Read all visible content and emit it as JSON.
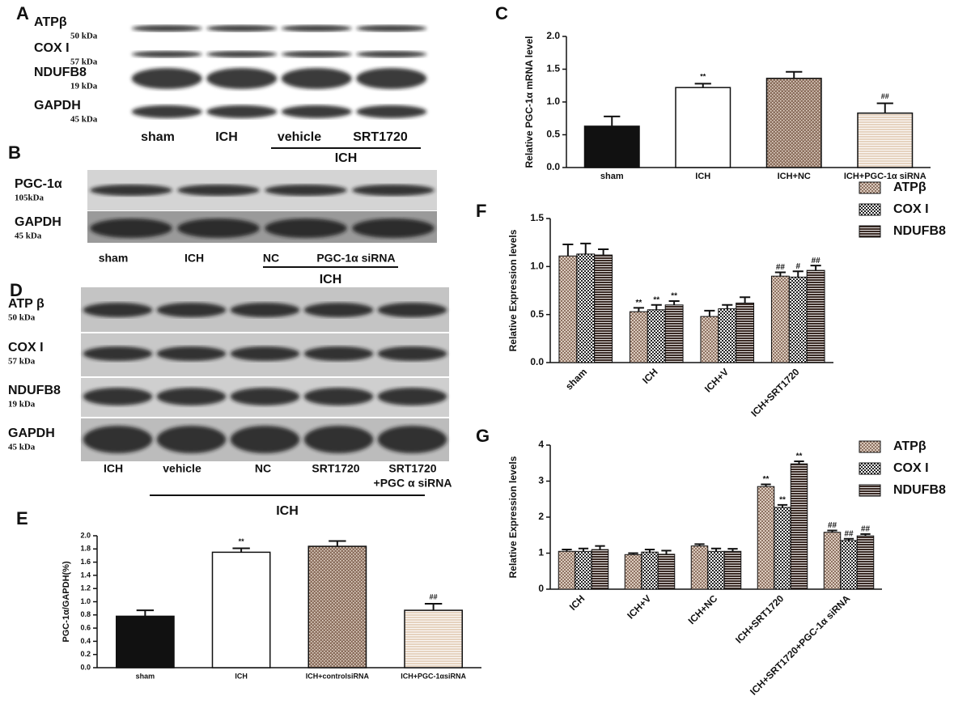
{
  "blots": [
    {
      "panel": "A",
      "rows": [
        {
          "name": "ATPβ",
          "size": "50 kDa"
        },
        {
          "name": "COX I",
          "size": "57 kDa"
        },
        {
          "name": "NDUFB8",
          "size": "19 kDa"
        },
        {
          "name": "GAPDH",
          "size": "45 kDa"
        }
      ],
      "lanes": [
        [
          "sham"
        ],
        [
          "ICH"
        ],
        [
          "vehicle"
        ],
        [
          "SRT1720"
        ]
      ],
      "group": "ICH"
    },
    {
      "panel": "B",
      "rows": [
        {
          "name": "PGC-1α",
          "size": "105kDa"
        },
        {
          "name": "GAPDH",
          "size": "45 kDa"
        }
      ],
      "lanes": [
        [
          "sham"
        ],
        [
          "ICH"
        ],
        [
          "NC"
        ],
        [
          "PGC-1α siRNA"
        ]
      ],
      "group": "ICH"
    },
    {
      "panel": "D",
      "rows": [
        {
          "name": "ATP β",
          "size": "50 kDa"
        },
        {
          "name": "COX I",
          "size": "57 kDa"
        },
        {
          "name": "NDUFB8",
          "size": "19 kDa"
        },
        {
          "name": "GAPDH",
          "size": "45 kDa"
        }
      ],
      "lanes": [
        [
          "ICH"
        ],
        [
          "vehicle"
        ],
        [
          "NC"
        ],
        [
          "SRT1720"
        ],
        [
          "SRT1720",
          "+PGC    α siRNA"
        ]
      ],
      "group": "ICH"
    }
  ],
  "chart_data": [
    {
      "type": "bar",
      "panel": "C",
      "y_label": "Relative PGC-1α mRNA level",
      "categories": [
        "sham",
        "ICH",
        "ICH+NC",
        "ICH+PGC-1α siRNA"
      ],
      "values": [
        0.63,
        1.22,
        1.36,
        0.83
      ],
      "errors": [
        0.15,
        0.06,
        0.1,
        0.15
      ],
      "stars": [
        null,
        "**",
        null,
        "##"
      ],
      "colors": [
        "#111111",
        "#ffffff",
        "#8c6f5e",
        "#e6d3c0"
      ],
      "patterns": [
        null,
        null,
        "dots",
        "hstripe"
      ],
      "ylim": [
        0,
        2
      ],
      "yticks": [
        {
          "value": 0,
          "label": "0.0"
        },
        {
          "value": 0.5,
          "label": "0.5"
        },
        {
          "value": 1,
          "label": "1.0"
        },
        {
          "value": 1.5,
          "label": "1.5"
        },
        {
          "value": 2,
          "label": "2.0"
        }
      ]
    },
    {
      "type": "bar",
      "panel": "E",
      "y_label": "PGC-1α/GAPDH(%)",
      "categories": [
        "sham",
        "ICH",
        "ICH+controlsiRNA",
        "ICH+PGC-1αsiRNA"
      ],
      "values": [
        0.78,
        1.75,
        1.84,
        0.87
      ],
      "errors": [
        0.09,
        0.06,
        0.08,
        0.1
      ],
      "stars": [
        null,
        "**",
        null,
        "##"
      ],
      "colors": [
        "#111111",
        "#ffffff",
        "#8c6f5e",
        "#e6d3c0"
      ],
      "patterns": [
        null,
        null,
        "dots",
        "hstripe"
      ],
      "ylim": [
        0,
        2
      ],
      "yticks": [
        {
          "value": 0,
          "label": "0.0"
        },
        {
          "value": 0.2,
          "label": "0.2"
        },
        {
          "value": 0.4,
          "label": "0.4"
        },
        {
          "value": 0.6,
          "label": "0.6"
        },
        {
          "value": 0.8,
          "label": "0.8"
        },
        {
          "value": 1,
          "label": "1.0"
        },
        {
          "value": 1.2,
          "label": "1.2"
        },
        {
          "value": 1.4,
          "label": "1.4"
        },
        {
          "value": 1.6,
          "label": "1.6"
        },
        {
          "value": 1.8,
          "label": "1.8"
        },
        {
          "value": 2,
          "label": "2.0"
        }
      ]
    },
    {
      "type": "grouped_bar",
      "panel": "F",
      "y_label": "Relative Expression levels",
      "categories": [
        "sham",
        "ICH",
        "ICH+V",
        "ICH+SRT1720"
      ],
      "series": [
        {
          "name": "ATPβ",
          "color": "#7a5a4a",
          "pattern": "diag",
          "values": [
            1.11,
            0.53,
            0.48,
            0.9
          ],
          "errors": [
            0.12,
            0.04,
            0.06,
            0.04
          ],
          "stars": [
            null,
            "**",
            null,
            "##"
          ]
        },
        {
          "name": "COX I",
          "color": "#222222",
          "pattern": "check",
          "values": [
            1.13,
            0.55,
            0.56,
            0.89
          ],
          "errors": [
            0.11,
            0.05,
            0.04,
            0.06
          ],
          "stars": [
            null,
            "**",
            null,
            "#"
          ]
        },
        {
          "name": "NDUFB8",
          "color": "#3a2a24",
          "pattern": "hstripe",
          "values": [
            1.12,
            0.6,
            0.62,
            0.96
          ],
          "errors": [
            0.06,
            0.04,
            0.06,
            0.05
          ],
          "stars": [
            null,
            "**",
            null,
            "##"
          ]
        }
      ],
      "ylim": [
        0,
        1.5
      ],
      "yticks": [
        {
          "value": 0,
          "label": "0.0"
        },
        {
          "value": 0.5,
          "label": "0.5"
        },
        {
          "value": 1,
          "label": "1.0"
        },
        {
          "value": 1.5,
          "label": "1.5"
        }
      ]
    },
    {
      "type": "grouped_bar",
      "panel": "G",
      "y_label": "Relative Expression levels",
      "categories": [
        "ICH",
        "ICH+V",
        "ICH+NC",
        "ICH+SRT1720",
        "ICH+SRT1720+PGC-1α siRNA"
      ],
      "series": [
        {
          "name": "ATPβ",
          "color": "#7a5a4a",
          "pattern": "diag",
          "values": [
            1.05,
            0.96,
            1.2,
            2.85,
            1.58
          ],
          "errors": [
            0.05,
            0.04,
            0.05,
            0.06,
            0.05
          ],
          "stars": [
            null,
            null,
            null,
            "**",
            "##"
          ]
        },
        {
          "name": "COX I",
          "color": "#222222",
          "pattern": "check",
          "values": [
            1.05,
            1.03,
            1.05,
            2.27,
            1.35
          ],
          "errors": [
            0.08,
            0.07,
            0.08,
            0.07,
            0.05
          ],
          "stars": [
            null,
            null,
            null,
            "**",
            "##"
          ]
        },
        {
          "name": "NDUFB8",
          "color": "#3a2a24",
          "pattern": "hstripe",
          "values": [
            1.1,
            0.97,
            1.05,
            3.48,
            1.48
          ],
          "errors": [
            0.1,
            0.1,
            0.07,
            0.07,
            0.05
          ],
          "stars": [
            null,
            null,
            null,
            "**",
            "##"
          ]
        }
      ],
      "ylim": [
        0,
        4
      ],
      "yticks": [
        0,
        1,
        2,
        3,
        4
      ]
    }
  ]
}
